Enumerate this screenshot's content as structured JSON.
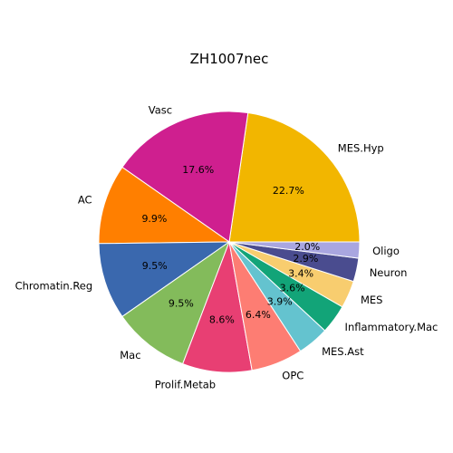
{
  "chart_data": {
    "type": "pie",
    "title": "ZH1007nec",
    "start_angle_deg": 0,
    "direction": "counterclockwise",
    "slices": [
      {
        "label": "MES.Hyp",
        "value": 22.7,
        "pct_label": "22.7%",
        "color": "#f2b600"
      },
      {
        "label": "Vasc",
        "value": 17.6,
        "pct_label": "17.6%",
        "color": "#cf1f8f"
      },
      {
        "label": "AC",
        "value": 9.9,
        "pct_label": "9.9%",
        "color": "#ff7f00"
      },
      {
        "label": "Chromatin.Reg",
        "value": 9.5,
        "pct_label": "9.5%",
        "color": "#3a68ae"
      },
      {
        "label": "Mac",
        "value": 9.5,
        "pct_label": "9.5%",
        "color": "#83bb5b"
      },
      {
        "label": "Prolif.Metab",
        "value": 8.6,
        "pct_label": "8.6%",
        "color": "#e83f73"
      },
      {
        "label": "OPC",
        "value": 6.4,
        "pct_label": "6.4%",
        "color": "#fd7d73"
      },
      {
        "label": "MES.Ast",
        "value": 3.9,
        "pct_label": "3.9%",
        "color": "#64c3cf"
      },
      {
        "label": "Inflammatory.Mac",
        "value": 3.6,
        "pct_label": "3.6%",
        "color": "#12a478"
      },
      {
        "label": "MES",
        "value": 3.4,
        "pct_label": "3.4%",
        "color": "#f8cd6f"
      },
      {
        "label": "Neuron",
        "value": 2.9,
        "pct_label": "2.9%",
        "color": "#4a4c8f"
      },
      {
        "label": "Oligo",
        "value": 2.0,
        "pct_label": "2.0%",
        "color": "#a9a6e0"
      }
    ]
  }
}
